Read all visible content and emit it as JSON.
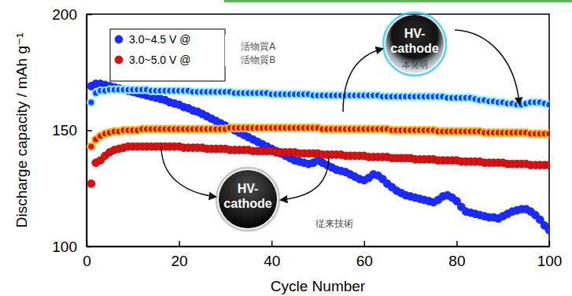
{
  "chart_data": {
    "type": "scatter",
    "x_label": "Cycle Number",
    "y_label": "Discharge capacity / mAh g⁻¹",
    "x": [
      1,
      2,
      3,
      4,
      5,
      6,
      7,
      8,
      9,
      10,
      11,
      12,
      13,
      14,
      15,
      16,
      17,
      18,
      19,
      20,
      21,
      22,
      23,
      24,
      25,
      26,
      27,
      28,
      29,
      30,
      31,
      32,
      33,
      34,
      35,
      36,
      37,
      38,
      39,
      40,
      41,
      42,
      43,
      44,
      45,
      46,
      47,
      48,
      49,
      50,
      51,
      52,
      53,
      54,
      55,
      56,
      57,
      58,
      59,
      60,
      61,
      62,
      63,
      64,
      65,
      66,
      67,
      68,
      69,
      70,
      71,
      72,
      73,
      74,
      75,
      76,
      77,
      78,
      79,
      80,
      81,
      82,
      83,
      84,
      85,
      86,
      87,
      88,
      89,
      90,
      91,
      92,
      93,
      94,
      95,
      96,
      97,
      98,
      99,
      100
    ],
    "xlim": [
      0,
      100
    ],
    "xticks": [
      0,
      20,
      40,
      60,
      80,
      100
    ],
    "ylim": [
      100,
      200
    ],
    "yticks": [
      100,
      150,
      200
    ],
    "legend": "upper left",
    "series": [
      {
        "name": "3.0~4.5 V @",
        "color": "#1c2bff",
        "marker": "circle",
        "values": [
          169,
          170,
          170,
          169.5,
          169,
          168.5,
          168,
          167.5,
          167,
          166.5,
          166,
          165.5,
          165,
          164.5,
          164,
          163.5,
          163,
          162,
          161.5,
          161,
          160,
          159.5,
          158.5,
          158,
          157,
          156,
          155,
          154,
          153,
          152,
          151,
          150,
          149,
          148,
          147,
          146,
          145,
          144,
          143,
          142,
          141,
          140,
          139,
          138,
          137,
          136.5,
          136,
          135.5,
          136,
          137,
          136,
          135,
          134,
          133,
          132.5,
          132,
          131,
          130,
          129,
          128.5,
          129.5,
          131,
          130.5,
          129,
          127,
          125.5,
          124,
          123,
          122,
          121.5,
          121,
          120.5,
          120,
          119.5,
          119,
          120,
          121.5,
          122,
          121,
          119.5,
          117,
          115,
          114.5,
          114,
          113.5,
          113,
          112.5,
          112.5,
          112,
          113,
          114,
          115,
          115.5,
          116,
          116,
          115,
          113.5,
          111.5,
          109,
          107
        ]
      },
      {
        "name": "3.0~5.0 V @",
        "color": "#d41414",
        "marker": "circle",
        "values": [
          127,
          136,
          137,
          139,
          140.5,
          141.5,
          142,
          142.5,
          143,
          143,
          143,
          143,
          143,
          143,
          143,
          143,
          143,
          143,
          143,
          143,
          142.5,
          142.5,
          142.5,
          142.5,
          142.5,
          142,
          142,
          142,
          142,
          142,
          141.5,
          141.5,
          141.5,
          141.5,
          141.5,
          141,
          141,
          141,
          141,
          141,
          140.5,
          140.5,
          140.5,
          140.5,
          140.5,
          140,
          140,
          140,
          140,
          140,
          139.5,
          139.5,
          139.5,
          139.5,
          139.5,
          139,
          139,
          139,
          139,
          139,
          138.5,
          138.5,
          138.5,
          138.5,
          138.5,
          138,
          138,
          138,
          138,
          138,
          137.5,
          137.5,
          137.5,
          137.5,
          137.5,
          137,
          137,
          137,
          137,
          137,
          136.5,
          136.5,
          136.5,
          136.5,
          136.5,
          136,
          136,
          136,
          136,
          136,
          135.5,
          135.5,
          135.5,
          135.5,
          135.5,
          135,
          135,
          135,
          135,
          135
        ]
      },
      {
        "color": "#1c3cff",
        "marker": "ringed",
        "values": [
          162,
          166,
          167,
          167,
          167.5,
          167.5,
          167.5,
          167.5,
          167.5,
          167.5,
          167.5,
          167.5,
          167.5,
          167,
          167,
          167,
          167,
          167,
          167,
          167,
          167,
          167,
          166.5,
          166.5,
          166.5,
          166.5,
          166.5,
          166.5,
          166.5,
          166.5,
          166.5,
          166,
          166,
          166,
          166,
          166,
          166,
          166,
          166,
          165.5,
          165.5,
          165.5,
          165.5,
          165.5,
          165.5,
          165.5,
          165.5,
          165.5,
          165,
          165,
          165,
          165,
          165,
          165,
          165,
          165,
          165,
          165,
          165,
          165,
          165,
          165,
          165,
          164.5,
          164.5,
          164.5,
          164.5,
          164.5,
          164.5,
          164.5,
          164.5,
          164.5,
          164.5,
          164.5,
          164.5,
          164.5,
          164.5,
          164,
          164,
          164,
          164,
          164,
          164,
          163.5,
          163,
          163,
          162.5,
          162.5,
          162,
          162,
          161.5,
          161.5,
          161,
          161,
          161.5,
          162,
          162,
          162,
          161.5,
          161
        ]
      },
      {
        "color": "#d41414",
        "marker": "ringed",
        "values": [
          143,
          146,
          147.5,
          148.5,
          149,
          149.5,
          149.5,
          150,
          150,
          150,
          150,
          150.5,
          150.5,
          150.5,
          150.5,
          150.5,
          150.5,
          150.5,
          150.5,
          150.5,
          150.5,
          150.5,
          150.5,
          150.5,
          150.5,
          150.5,
          150.5,
          150.5,
          150.5,
          150.5,
          151,
          151,
          151,
          151,
          151,
          151,
          151,
          151,
          151,
          151,
          151,
          151,
          151,
          151,
          151,
          151,
          151,
          151,
          151,
          151,
          150.5,
          150.5,
          150.5,
          150.5,
          150.5,
          150.5,
          150.5,
          150.5,
          150.5,
          150.5,
          150.5,
          150.5,
          150.5,
          150.5,
          150.5,
          150,
          150,
          150,
          150,
          150,
          150,
          150,
          150,
          150,
          150,
          149.5,
          149.5,
          149.5,
          149.5,
          149.5,
          149.5,
          149.5,
          149.5,
          149.5,
          149.5,
          149,
          149,
          149,
          149,
          149,
          149,
          149,
          149,
          149,
          149,
          148.5,
          148.5,
          148.5,
          148.5,
          148.5
        ]
      }
    ],
    "annotations": [
      {
        "lines": [
          "HV-",
          "cathode"
        ],
        "caption": "本発明"
      },
      {
        "lines": [
          "HV-",
          "cathode"
        ],
        "caption": "従来技術"
      },
      {
        "text": "活物質A"
      },
      {
        "text": "活物質B"
      }
    ]
  }
}
